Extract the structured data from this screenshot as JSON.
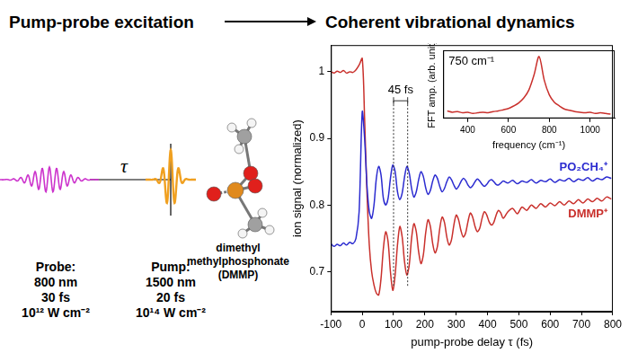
{
  "header": {
    "left_title": "Pump-probe excitation",
    "right_title": "Coherent vibrational dynamics"
  },
  "diagram": {
    "tau": "τ",
    "probe": [
      "Probe:",
      "800 nm",
      "30 fs",
      "10¹² W cm⁻²"
    ],
    "pump": [
      "Pump:",
      "1500 nm",
      "20 fs",
      "10¹⁴ W cm⁻²"
    ],
    "molecule": [
      "dimethyl",
      "methylphosphonate",
      "(DMMP)"
    ]
  },
  "chart_data": [
    {
      "type": "line",
      "x_label": "pump-probe delay τ (fs)",
      "y_label": "ion signal (normalized)",
      "xlim": [
        -100,
        800
      ],
      "xticks": [
        -100,
        0,
        100,
        200,
        300,
        400,
        500,
        600,
        700,
        800
      ],
      "ylim": [
        0.64,
        1.04
      ],
      "yticks": [
        0.7,
        0.8,
        0.9,
        1
      ],
      "grid": false,
      "annotations": [
        {
          "text": "45 fs",
          "x": [
            100,
            145
          ]
        }
      ],
      "x": [
        -100,
        -90,
        -80,
        -70,
        -60,
        -50,
        -40,
        -30,
        -20,
        -10,
        0,
        7.5,
        15,
        22.5,
        30,
        37.5,
        45,
        52.5,
        60,
        67.5,
        75,
        82.5,
        90,
        97.5,
        105,
        112.5,
        120,
        127.5,
        135,
        142.5,
        150,
        157.5,
        165,
        172.5,
        180,
        187.5,
        195,
        202.5,
        210,
        217.5,
        225,
        232.5,
        240,
        247.5,
        255,
        262.5,
        270,
        277.5,
        285,
        292.5,
        300,
        307.5,
        315,
        322.5,
        330,
        337.5,
        345,
        352.5,
        360,
        367.5,
        375,
        382.5,
        390,
        397.5,
        405,
        412.5,
        420,
        427.5,
        435,
        442.5,
        450,
        465,
        480,
        495,
        510,
        525,
        540,
        555,
        570,
        585,
        600,
        615,
        630,
        645,
        660,
        675,
        690,
        705,
        720,
        735,
        750,
        765,
        780,
        795
      ],
      "series": [
        {
          "name": "PO₂CH₄⁺",
          "color": "#2b2bd0",
          "values": [
            0.742,
            0.738,
            0.741,
            0.739,
            0.743,
            0.74,
            0.744,
            0.742,
            0.75,
            0.79,
            0.94,
            0.9,
            0.83,
            0.79,
            0.78,
            0.8,
            0.84,
            0.858,
            0.845,
            0.81,
            0.8,
            0.81,
            0.84,
            0.86,
            0.85,
            0.82,
            0.808,
            0.818,
            0.842,
            0.858,
            0.848,
            0.825,
            0.812,
            0.82,
            0.838,
            0.85,
            0.843,
            0.826,
            0.816,
            0.822,
            0.836,
            0.845,
            0.84,
            0.828,
            0.82,
            0.825,
            0.835,
            0.842,
            0.838,
            0.83,
            0.824,
            0.828,
            0.835,
            0.84,
            0.837,
            0.83,
            0.826,
            0.829,
            0.835,
            0.839,
            0.836,
            0.831,
            0.828,
            0.831,
            0.836,
            0.838,
            0.835,
            0.831,
            0.83,
            0.833,
            0.836,
            0.833,
            0.837,
            0.832,
            0.836,
            0.834,
            0.838,
            0.833,
            0.837,
            0.835,
            0.839,
            0.834,
            0.838,
            0.836,
            0.84,
            0.835,
            0.839,
            0.837,
            0.841,
            0.836,
            0.84,
            0.838,
            0.842,
            0.84
          ]
        },
        {
          "name": "DMMP⁺",
          "color": "#c9302c",
          "values": [
            1.0,
            0.998,
            1.001,
            0.999,
            1.002,
            0.998,
            1.0,
            0.999,
            1.003,
            1.01,
            1.02,
            0.93,
            0.82,
            0.74,
            0.7,
            0.68,
            0.668,
            0.665,
            0.69,
            0.735,
            0.76,
            0.745,
            0.7,
            0.672,
            0.695,
            0.74,
            0.768,
            0.752,
            0.715,
            0.695,
            0.71,
            0.75,
            0.772,
            0.76,
            0.73,
            0.712,
            0.725,
            0.758,
            0.778,
            0.768,
            0.742,
            0.728,
            0.738,
            0.765,
            0.782,
            0.774,
            0.752,
            0.74,
            0.748,
            0.77,
            0.785,
            0.778,
            0.762,
            0.752,
            0.758,
            0.775,
            0.788,
            0.782,
            0.768,
            0.76,
            0.765,
            0.78,
            0.79,
            0.785,
            0.775,
            0.77,
            0.774,
            0.785,
            0.792,
            0.788,
            0.78,
            0.79,
            0.795,
            0.787,
            0.797,
            0.792,
            0.8,
            0.795,
            0.802,
            0.797,
            0.803,
            0.799,
            0.805,
            0.8,
            0.806,
            0.802,
            0.808,
            0.803,
            0.809,
            0.805,
            0.81,
            0.806,
            0.812,
            0.809
          ]
        }
      ]
    },
    {
      "type": "line",
      "x_label": "frequency (cm⁻¹)",
      "y_label": "FFT amp. (arb. unit)",
      "xlim": [
        280,
        1120
      ],
      "xticks": [
        400,
        600,
        800,
        1000
      ],
      "ylim": [
        0,
        1.1
      ],
      "tick_labels": "x",
      "grid": false,
      "color": "#c9302c",
      "annotations": [
        {
          "text": "750 cm⁻¹"
        }
      ],
      "x": [
        300,
        325,
        350,
        375,
        400,
        425,
        450,
        475,
        500,
        525,
        550,
        575,
        600,
        625,
        650,
        675,
        700,
        725,
        750,
        775,
        800,
        825,
        850,
        875,
        900,
        925,
        950,
        975,
        1000,
        1025,
        1050,
        1075,
        1100
      ],
      "values": [
        0.12,
        0.1,
        0.11,
        0.09,
        0.1,
        0.08,
        0.09,
        0.1,
        0.09,
        0.11,
        0.12,
        0.14,
        0.16,
        0.2,
        0.25,
        0.33,
        0.46,
        0.7,
        1.0,
        0.62,
        0.38,
        0.26,
        0.2,
        0.15,
        0.13,
        0.11,
        0.1,
        0.09,
        0.1,
        0.08,
        0.09,
        0.08,
        0.07
      ]
    }
  ]
}
